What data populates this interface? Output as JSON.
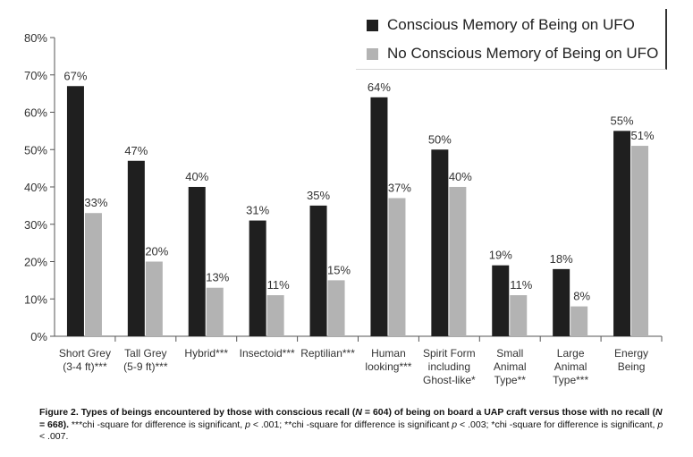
{
  "chart_data": {
    "type": "bar",
    "categories": [
      [
        "Short Grey",
        "(3-4 ft)***"
      ],
      [
        "Tall Grey",
        "(5-9 ft)***"
      ],
      [
        "Hybrid***"
      ],
      [
        "Insectoid***"
      ],
      [
        "Reptilian***"
      ],
      [
        "Human",
        "looking***"
      ],
      [
        "Spirit Form",
        "including",
        "Ghost-like*"
      ],
      [
        "Small",
        "Animal",
        "Type**"
      ],
      [
        "Large",
        "Animal",
        "Type***"
      ],
      [
        "Energy",
        "Being"
      ]
    ],
    "series": [
      {
        "name": "Conscious Memory of Being on UFO",
        "color": "#1f1f1f",
        "values": [
          67,
          47,
          40,
          31,
          35,
          64,
          50,
          19,
          18,
          55
        ],
        "labels": [
          "67%",
          "47%",
          "40%",
          "31%",
          "35%",
          "64%",
          "50%",
          "19%",
          "18%",
          "55%"
        ]
      },
      {
        "name": "No Conscious Memory of Being on UFO",
        "color": "#b3b3b3",
        "values": [
          33,
          20,
          13,
          11,
          15,
          37,
          40,
          11,
          8,
          51
        ],
        "labels": [
          "33%",
          "20%",
          "13%",
          "11%",
          "15%",
          "37%",
          "40%",
          "11%",
          "8%",
          "51%"
        ]
      }
    ],
    "yticks": [
      "0%",
      "10%",
      "20%",
      "30%",
      "40%",
      "50%",
      "60%",
      "70%",
      "80%"
    ],
    "ylim": [
      0,
      80
    ],
    "grid": false,
    "legend_position": "top-right"
  },
  "caption": {
    "lead_a": "Figure 2.  Types of beings encountered by those with conscious recall (",
    "n1": "N",
    "lead_b": " = 604) of being on board a UAP craft versus those with no recall (",
    "n2": "N",
    "lead_c": " = 668).",
    "rest_a": " ***chi -square for difference is significant, ",
    "p1": "p",
    "rest_b": " < .001; **chi -square for difference is significant ",
    "p2": "p",
    "rest_c": " < .003; *chi -square for difference is significant, ",
    "p3": "p",
    "rest_d": " < .007."
  }
}
